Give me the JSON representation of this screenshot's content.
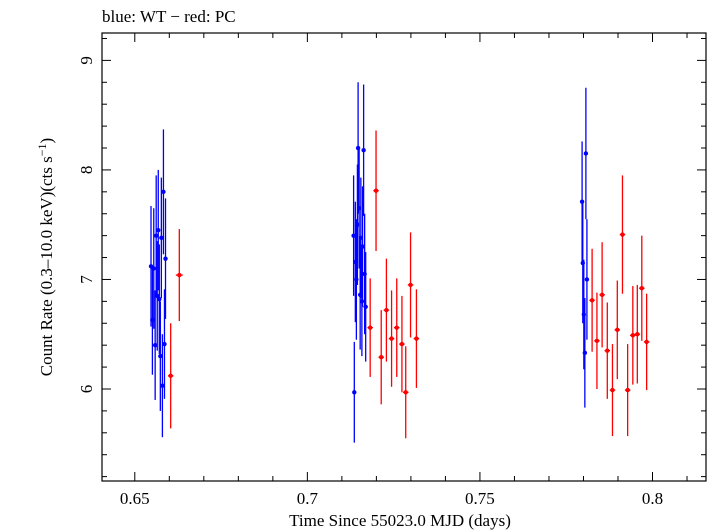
{
  "chart_data": {
    "type": "scatter",
    "title": "blue: WT − red: PC",
    "xlabel": "Time Since 55023.0 MJD (days)",
    "ylabel_main": "Count Rate (0.3–10.0 keV)(cts s",
    "ylabel_sup": "−1",
    "ylabel_end": ")",
    "xlim": [
      0.6405,
      0.8155
    ],
    "ylim": [
      5.16,
      9.25
    ],
    "x_ticks": [
      0.65,
      0.7,
      0.75,
      0.8
    ],
    "x_tick_labels": [
      "0.65",
      "0.7",
      "0.75",
      "0.8"
    ],
    "y_ticks": [
      6,
      7,
      8,
      9
    ],
    "y_tick_labels": [
      "6",
      "7",
      "8",
      "9"
    ],
    "colors": {
      "WT": "#0000ff",
      "PC": "#ff0000",
      "axes": "#000000"
    },
    "series": [
      {
        "name": "WT",
        "points": [
          {
            "x": 0.6547,
            "y": 7.12,
            "yerr": 0.55
          },
          {
            "x": 0.6551,
            "y": 6.63,
            "yerr": 0.5
          },
          {
            "x": 0.6555,
            "y": 7.1,
            "yerr": 0.55
          },
          {
            "x": 0.6559,
            "y": 6.4,
            "yerr": 0.5
          },
          {
            "x": 0.6562,
            "y": 7.4,
            "yerr": 0.55
          },
          {
            "x": 0.6565,
            "y": 6.85,
            "yerr": 0.5
          },
          {
            "x": 0.6568,
            "y": 7.45,
            "yerr": 0.55
          },
          {
            "x": 0.6571,
            "y": 6.82,
            "yerr": 0.5
          },
          {
            "x": 0.6574,
            "y": 6.3,
            "yerr": 0.5
          },
          {
            "x": 0.6577,
            "y": 7.38,
            "yerr": 0.55
          },
          {
            "x": 0.658,
            "y": 6.03,
            "yerr": 0.47
          },
          {
            "x": 0.6583,
            "y": 7.8,
            "yerr": 0.57
          },
          {
            "x": 0.6586,
            "y": 6.41,
            "yerr": 0.5
          },
          {
            "x": 0.6589,
            "y": 7.19,
            "yerr": 0.55
          },
          {
            "x": 0.7134,
            "y": 7.4,
            "yerr": 0.55
          },
          {
            "x": 0.7136,
            "y": 5.97,
            "yerr": 0.46
          },
          {
            "x": 0.7139,
            "y": 7.16,
            "yerr": 0.55
          },
          {
            "x": 0.7142,
            "y": 7.0,
            "yerr": 0.55
          },
          {
            "x": 0.7145,
            "y": 7.5,
            "yerr": 0.55
          },
          {
            "x": 0.7147,
            "y": 8.2,
            "yerr": 0.6
          },
          {
            "x": 0.715,
            "y": 7.65,
            "yerr": 0.55
          },
          {
            "x": 0.7153,
            "y": 6.86,
            "yerr": 0.5
          },
          {
            "x": 0.7155,
            "y": 7.38,
            "yerr": 0.55
          },
          {
            "x": 0.7158,
            "y": 6.8,
            "yerr": 0.5
          },
          {
            "x": 0.716,
            "y": 7.3,
            "yerr": 0.55
          },
          {
            "x": 0.7163,
            "y": 8.18,
            "yerr": 0.6
          },
          {
            "x": 0.7166,
            "y": 7.05,
            "yerr": 0.55
          },
          {
            "x": 0.7169,
            "y": 6.75,
            "yerr": 0.5
          },
          {
            "x": 0.7796,
            "y": 7.71,
            "yerr": 0.55
          },
          {
            "x": 0.7798,
            "y": 7.15,
            "yerr": 0.55
          },
          {
            "x": 0.7801,
            "y": 6.68,
            "yerr": 0.5
          },
          {
            "x": 0.7804,
            "y": 6.33,
            "yerr": 0.5
          },
          {
            "x": 0.7807,
            "y": 8.15,
            "yerr": 0.6
          },
          {
            "x": 0.781,
            "y": 7.0,
            "yerr": 0.55
          }
        ]
      },
      {
        "name": "PC",
        "points": [
          {
            "x": 0.6604,
            "y": 6.12,
            "yerr": 0.48,
            "xerr": 0.0008
          },
          {
            "x": 0.6629,
            "y": 7.04,
            "yerr": 0.42,
            "xerr": 0.001
          },
          {
            "x": 0.7182,
            "y": 6.56,
            "yerr": 0.45,
            "xerr": 0.0008
          },
          {
            "x": 0.7199,
            "y": 7.81,
            "yerr": 0.55,
            "xerr": 0.0008
          },
          {
            "x": 0.7214,
            "y": 6.29,
            "yerr": 0.43,
            "xerr": 0.0008
          },
          {
            "x": 0.7229,
            "y": 6.72,
            "yerr": 0.47,
            "xerr": 0.0008
          },
          {
            "x": 0.7244,
            "y": 6.46,
            "yerr": 0.44,
            "xerr": 0.0008
          },
          {
            "x": 0.7259,
            "y": 6.56,
            "yerr": 0.45,
            "xerr": 0.0008
          },
          {
            "x": 0.7274,
            "y": 6.41,
            "yerr": 0.44,
            "xerr": 0.0008
          },
          {
            "x": 0.7285,
            "y": 5.97,
            "yerr": 0.42,
            "xerr": 0.0008
          },
          {
            "x": 0.7299,
            "y": 6.95,
            "yerr": 0.48,
            "xerr": 0.0008
          },
          {
            "x": 0.7316,
            "y": 6.46,
            "yerr": 0.45,
            "xerr": 0.0008
          },
          {
            "x": 0.7825,
            "y": 6.81,
            "yerr": 0.47,
            "xerr": 0.0008
          },
          {
            "x": 0.7839,
            "y": 6.44,
            "yerr": 0.44,
            "xerr": 0.0008
          },
          {
            "x": 0.7854,
            "y": 6.86,
            "yerr": 0.48,
            "xerr": 0.0008
          },
          {
            "x": 0.7869,
            "y": 6.35,
            "yerr": 0.44,
            "xerr": 0.0008
          },
          {
            "x": 0.7884,
            "y": 5.99,
            "yerr": 0.42,
            "xerr": 0.0008
          },
          {
            "x": 0.7898,
            "y": 6.54,
            "yerr": 0.45,
            "xerr": 0.0008
          },
          {
            "x": 0.7913,
            "y": 7.41,
            "yerr": 0.54,
            "xerr": 0.0008
          },
          {
            "x": 0.7928,
            "y": 5.99,
            "yerr": 0.42,
            "xerr": 0.0008
          },
          {
            "x": 0.7943,
            "y": 6.49,
            "yerr": 0.45,
            "xerr": 0.0008
          },
          {
            "x": 0.7956,
            "y": 6.5,
            "yerr": 0.45,
            "xerr": 0.0008
          },
          {
            "x": 0.7969,
            "y": 6.92,
            "yerr": 0.48,
            "xerr": 0.0008
          },
          {
            "x": 0.7983,
            "y": 6.43,
            "yerr": 0.44,
            "xerr": 0.0008
          }
        ]
      }
    ]
  }
}
